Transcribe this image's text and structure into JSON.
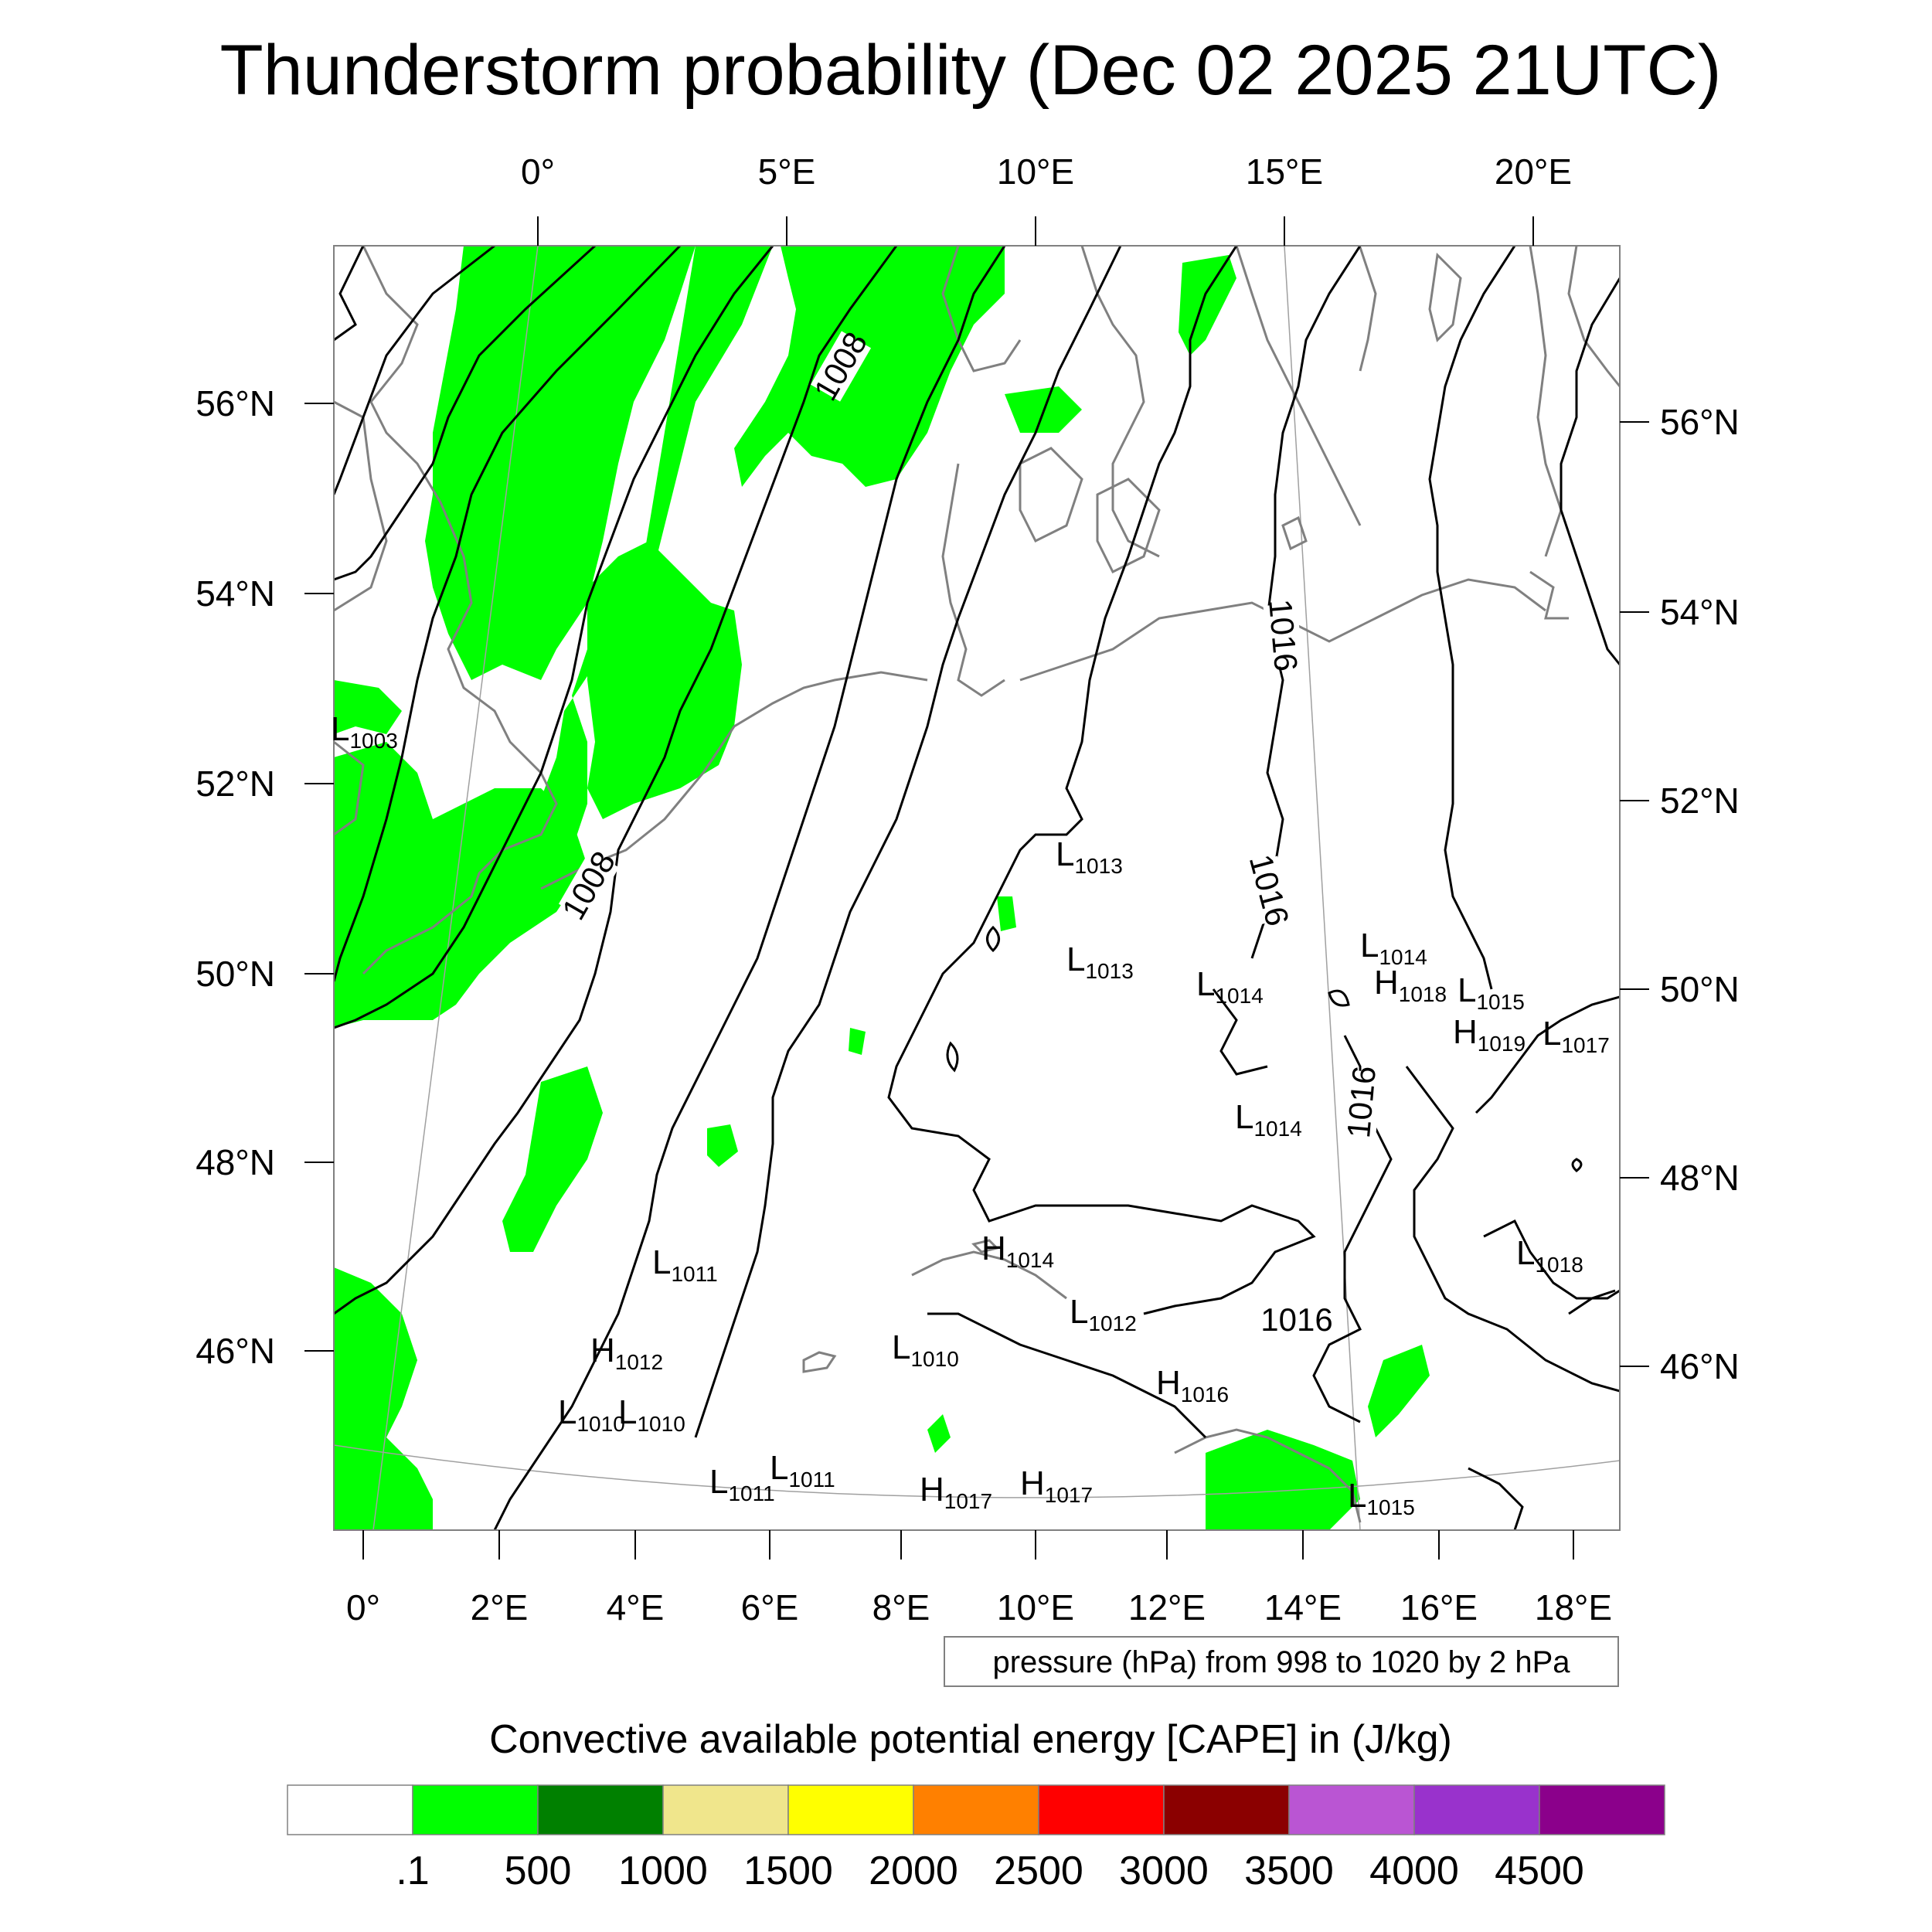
{
  "title": "Thunderstorm probability (Dec 02 2025 21UTC)",
  "top_lon_labels": [
    "0°",
    "5°E",
    "10°E",
    "15°E",
    "20°E"
  ],
  "bottom_lon_labels": [
    "0°",
    "2°E",
    "4°E",
    "6°E",
    "8°E",
    "10°E",
    "12°E",
    "14°E",
    "16°E",
    "18°E"
  ],
  "left_lat_labels": [
    "56°N",
    "54°N",
    "52°N",
    "50°N",
    "48°N",
    "46°N"
  ],
  "right_lat_labels": [
    "56°N",
    "54°N",
    "52°N",
    "50°N",
    "48°N",
    "46°N"
  ],
  "isobar_labels": [
    "1008",
    "1008",
    "1016",
    "1016",
    "1016",
    "1016"
  ],
  "pressure_systems": [
    {
      "kind": "L",
      "value": "1003"
    },
    {
      "kind": "L",
      "value": "1013"
    },
    {
      "kind": "L",
      "value": "1013"
    },
    {
      "kind": "L",
      "value": "1014"
    },
    {
      "kind": "L",
      "value": "1014"
    },
    {
      "kind": "H",
      "value": "1018"
    },
    {
      "kind": "L",
      "value": "1015"
    },
    {
      "kind": "H",
      "value": "1019"
    },
    {
      "kind": "L",
      "value": "1017"
    },
    {
      "kind": "L",
      "value": "1014"
    },
    {
      "kind": "L",
      "value": "1018"
    },
    {
      "kind": "L",
      "value": "1011"
    },
    {
      "kind": "H",
      "value": "1014"
    },
    {
      "kind": "H",
      "value": "1012"
    },
    {
      "kind": "L",
      "value": "1012"
    },
    {
      "kind": "L",
      "value": "1010"
    },
    {
      "kind": "L",
      "value": "1010"
    },
    {
      "kind": "L",
      "value": "1010"
    },
    {
      "kind": "H",
      "value": "1016"
    },
    {
      "kind": "L",
      "value": "1011"
    },
    {
      "kind": "L",
      "value": "1011"
    },
    {
      "kind": "H",
      "value": "1017"
    },
    {
      "kind": "H",
      "value": "1017"
    },
    {
      "kind": "L",
      "value": "1015"
    }
  ],
  "contour_note": "pressure (hPa) from 998 to 1020 by 2 hPa",
  "colorbar": {
    "title": "Convective available potential energy [CAPE] in (J/kg)",
    "colors": [
      "#ffffff",
      "#00ff00",
      "#008000",
      "#f0e68c",
      "#ffff00",
      "#ff8000",
      "#ff0000",
      "#8b0000",
      "#ba55d3",
      "#9932cc",
      "#8b008b"
    ],
    "labels": [
      ".1",
      "500",
      "1000",
      "1500",
      "2000",
      "2500",
      "3000",
      "3500",
      "4000",
      "4500"
    ]
  },
  "colors": {
    "cape_fill": "#00ff00",
    "isobar": "#000000",
    "coastline": "#808080",
    "graticule": "#a0a0a0"
  }
}
